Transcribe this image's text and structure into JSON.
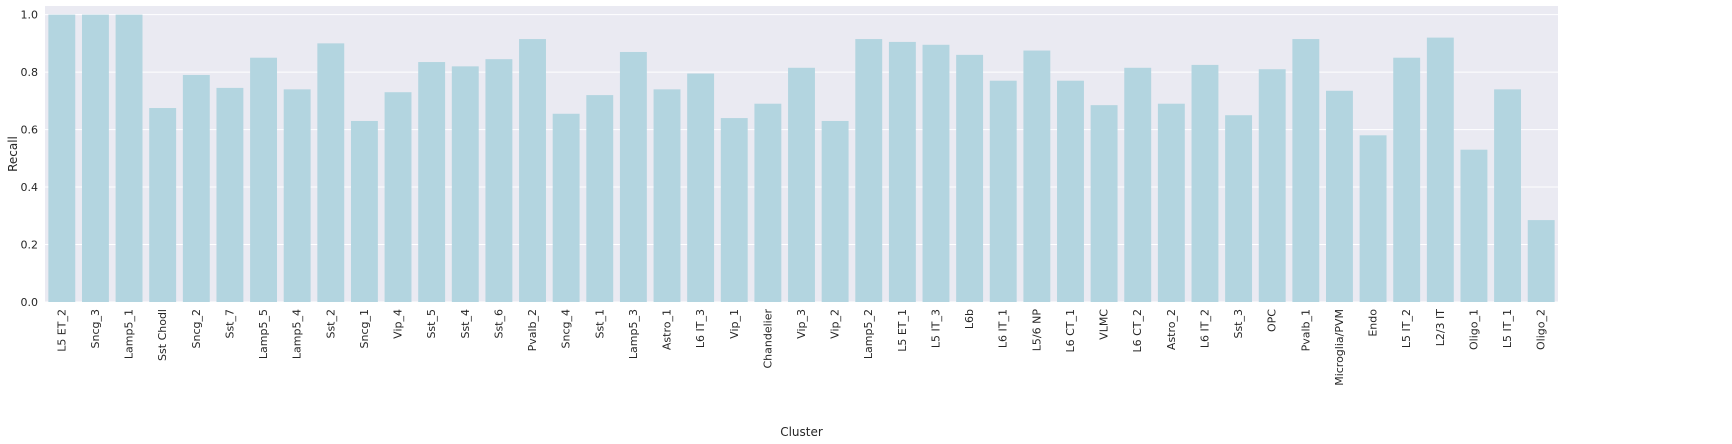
{
  "chart_data": {
    "type": "bar",
    "xlabel": "Cluster",
    "ylabel": "Recall",
    "ylim": [
      0,
      1.03
    ],
    "yticks": [
      0.0,
      0.2,
      0.4,
      0.6,
      0.8,
      1.0
    ],
    "ytick_labels": [
      "0.0",
      "0.2",
      "0.4",
      "0.6",
      "0.8",
      "1.0"
    ],
    "grid": true,
    "bar_color": "#b3d5e0",
    "background_color": "#eaeaf2",
    "categories": [
      "L5 ET_2",
      "Sncg_3",
      "Lamp5_1",
      "Sst Chodl",
      "Sncg_2",
      "Sst_7",
      "Lamp5_5",
      "Lamp5_4",
      "Sst_2",
      "Sncg_1",
      "Vip_4",
      "Sst_5",
      "Sst_4",
      "Sst_6",
      "Pvalb_2",
      "Sncg_4",
      "Sst_1",
      "Lamp5_3",
      "Astro_1",
      "L6 IT_3",
      "Vip_1",
      "Chandelier",
      "Vip_3",
      "Vip_2",
      "Lamp5_2",
      "L5 ET_1",
      "L5 IT_3",
      "L6b",
      "L6 IT_1",
      "L5/6 NP",
      "L6 CT_1",
      "VLMC",
      "L6 CT_2",
      "Astro_2",
      "L6 IT_2",
      "Sst_3",
      "OPC",
      "Pvalb_1",
      "Microglia/PVM",
      "Endo",
      "L5 IT_2",
      "L2/3 IT",
      "Oligo_1",
      "L5 IT_1",
      "Oligo_2"
    ],
    "values": [
      1.0,
      1.0,
      1.0,
      0.675,
      0.79,
      0.745,
      0.85,
      0.74,
      0.9,
      0.63,
      0.73,
      0.835,
      0.82,
      0.845,
      0.915,
      0.655,
      0.72,
      0.87,
      0.74,
      0.795,
      0.64,
      0.69,
      0.815,
      0.63,
      0.915,
      0.905,
      0.895,
      0.86,
      0.77,
      0.875,
      0.77,
      0.685,
      0.815,
      0.69,
      0.825,
      0.65,
      0.81,
      0.915,
      0.735,
      0.58,
      0.85,
      0.92,
      0.53,
      0.74,
      0.285
    ]
  }
}
